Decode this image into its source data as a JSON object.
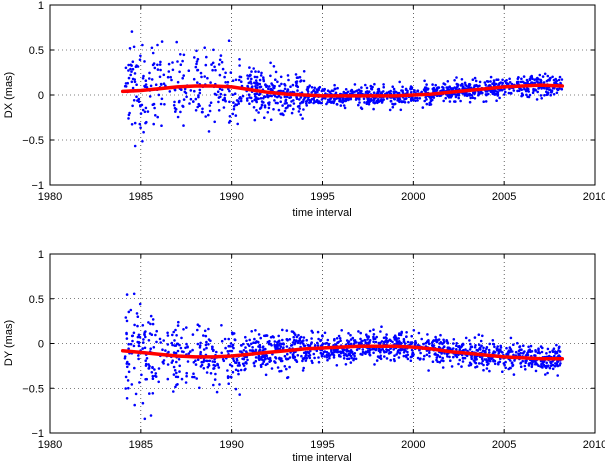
{
  "chart_data": [
    {
      "type": "scatter",
      "xlabel": "time interval",
      "ylabel": "DX (mas)",
      "xlim": [
        1980,
        2010
      ],
      "ylim": [
        -1,
        1
      ],
      "xticks": [
        1980,
        1985,
        1990,
        1995,
        2000,
        2005,
        2010
      ],
      "yticks": [
        -1,
        -0.5,
        0,
        0.5,
        1
      ],
      "xtick_labels": [
        "1980",
        "1985",
        "1990",
        "1995",
        "2000",
        "2005",
        "2010"
      ],
      "ytick_labels": [
        "−1",
        "−0.5",
        "0",
        "0.5",
        "1"
      ],
      "grid": "dotted",
      "point_color": "#0000ff",
      "trend_color": "#ff0000",
      "scatter_summary": {
        "x_start": 1984.1,
        "x_end": 2008.2,
        "bands": [
          {
            "from": 1984.1,
            "to": 1986,
            "spread": 0.45,
            "count": 90
          },
          {
            "from": 1986,
            "to": 1990.5,
            "spread": 0.33,
            "count": 170
          },
          {
            "from": 1990.5,
            "to": 1994,
            "spread": 0.18,
            "count": 230
          },
          {
            "from": 1994,
            "to": 2008.2,
            "spread": 0.08,
            "count": 900
          }
        ]
      },
      "trend": {
        "x": [
          1984,
          1985,
          1986,
          1987,
          1988,
          1989,
          1990,
          1991,
          1992,
          1993,
          1994,
          1995,
          1996,
          1997,
          1998,
          1999,
          2000,
          2001,
          2002,
          2003,
          2004,
          2005,
          2006,
          2007,
          2008.2
        ],
        "y": [
          0.04,
          0.05,
          0.07,
          0.09,
          0.1,
          0.1,
          0.09,
          0.06,
          0.03,
          0.01,
          0.0,
          -0.01,
          -0.01,
          -0.01,
          -0.01,
          -0.01,
          0.0,
          0.01,
          0.03,
          0.05,
          0.07,
          0.09,
          0.1,
          0.11,
          0.1
        ]
      }
    },
    {
      "type": "scatter",
      "xlabel": "time interval",
      "ylabel": "DY (mas)",
      "xlim": [
        1980,
        2010
      ],
      "ylim": [
        -1,
        1
      ],
      "xticks": [
        1980,
        1985,
        1990,
        1995,
        2000,
        2005,
        2010
      ],
      "yticks": [
        -1,
        -0.5,
        0,
        0.5,
        1
      ],
      "xtick_labels": [
        "1980",
        "1985",
        "1990",
        "1995",
        "2000",
        "2005",
        "2010"
      ],
      "ytick_labels": [
        "−1",
        "−0.5",
        "0",
        "0.5",
        "1"
      ],
      "grid": "dotted",
      "point_color": "#0000ff",
      "trend_color": "#ff0000",
      "scatter_summary": {
        "x_start": 1984.1,
        "x_end": 2008.2,
        "bands": [
          {
            "from": 1984.1,
            "to": 1986,
            "spread": 0.4,
            "count": 110
          },
          {
            "from": 1986,
            "to": 1990.5,
            "spread": 0.25,
            "count": 200
          },
          {
            "from": 1990.5,
            "to": 1994,
            "spread": 0.17,
            "count": 240
          },
          {
            "from": 1994,
            "to": 2008.2,
            "spread": 0.11,
            "count": 900
          }
        ]
      },
      "trend": {
        "x": [
          1984,
          1985,
          1986,
          1987,
          1988,
          1989,
          1990,
          1991,
          1992,
          1993,
          1994,
          1995,
          1996,
          1997,
          1998,
          1999,
          2000,
          2001,
          2002,
          2003,
          2004,
          2005,
          2006,
          2007,
          2008.2
        ],
        "y": [
          -0.08,
          -0.1,
          -0.12,
          -0.14,
          -0.15,
          -0.15,
          -0.14,
          -0.12,
          -0.1,
          -0.08,
          -0.06,
          -0.05,
          -0.04,
          -0.03,
          -0.03,
          -0.03,
          -0.04,
          -0.06,
          -0.09,
          -0.11,
          -0.13,
          -0.15,
          -0.16,
          -0.17,
          -0.17
        ]
      }
    }
  ]
}
